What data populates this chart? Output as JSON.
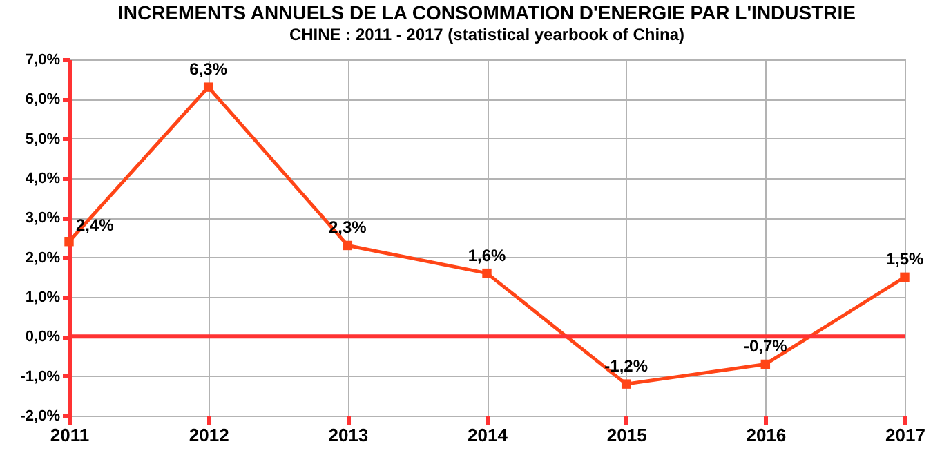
{
  "chart_data": {
    "type": "line",
    "title": "INCREMENTS ANNUELS DE LA CONSOMMATION D'ENERGIE PAR L'INDUSTRIE",
    "subtitle": "CHINE : 2011 - 2017   (statistical yearbook of China)",
    "categories": [
      "2011",
      "2012",
      "2013",
      "2014",
      "2015",
      "2016",
      "2017"
    ],
    "series": [
      {
        "color": "#ff4517",
        "values": [
          2.4,
          6.3,
          2.3,
          1.6,
          -1.2,
          -0.7,
          1.5
        ],
        "value_labels": [
          "2,4%",
          "6,3%",
          "2,3%",
          "1,6%",
          "-1,2%",
          "-0,7%",
          "1,5%"
        ]
      }
    ],
    "ylim": [
      -2,
      7
    ],
    "yticks": [
      {
        "value": -2,
        "label": "-2,0%"
      },
      {
        "value": -1,
        "label": "-1,0%"
      },
      {
        "value": 0,
        "label": "0,0%"
      },
      {
        "value": 1,
        "label": "1,0%"
      },
      {
        "value": 2,
        "label": "2,0%"
      },
      {
        "value": 3,
        "label": "3,0%"
      },
      {
        "value": 4,
        "label": "4,0%"
      },
      {
        "value": 5,
        "label": "5,0%"
      },
      {
        "value": 6,
        "label": "6,0%"
      },
      {
        "value": 7,
        "label": "7,0%"
      }
    ],
    "ref_lines": [
      {
        "axis": "y",
        "value": 0,
        "color": "#ff3333"
      }
    ],
    "grid": true,
    "marker": "square",
    "line_style": "solid"
  }
}
